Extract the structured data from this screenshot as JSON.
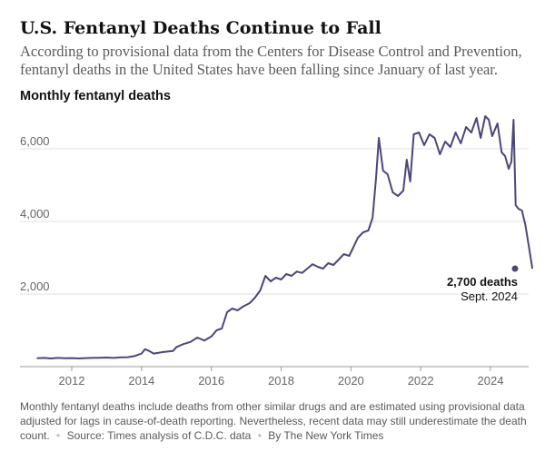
{
  "header": {
    "title": "U.S. Fentanyl Deaths Continue to Fall",
    "subtitle": "According to provisional data from the Centers for Disease Control and Prevention, fentanyl deaths in the United States have been falling since January of last year."
  },
  "chart_label": "Monthly fentanyl deaths",
  "chart_data": {
    "type": "line",
    "title": "Monthly fentanyl deaths",
    "xlabel": "",
    "ylabel": "",
    "xlim": [
      2011.0,
      2024.75
    ],
    "ylim": [
      0,
      7000
    ],
    "x_ticks": [
      2012,
      2014,
      2016,
      2018,
      2020,
      2022,
      2024
    ],
    "x_tick_labels": [
      "2012",
      "2014",
      "2016",
      "2018",
      "2020",
      "2022",
      "2024"
    ],
    "y_ticks": [
      2000,
      4000,
      6000
    ],
    "y_tick_labels": [
      "2,000",
      "4,000",
      "6,000"
    ],
    "grid": "horizontal",
    "line_color": "#4b4779",
    "series": [
      {
        "name": "",
        "points": [
          [
            2011.0,
            230
          ],
          [
            2011.2,
            240
          ],
          [
            2011.4,
            225
          ],
          [
            2011.6,
            240
          ],
          [
            2011.8,
            230
          ],
          [
            2012.0,
            235
          ],
          [
            2012.2,
            225
          ],
          [
            2012.4,
            235
          ],
          [
            2012.6,
            240
          ],
          [
            2012.8,
            245
          ],
          [
            2013.0,
            250
          ],
          [
            2013.2,
            240
          ],
          [
            2013.4,
            255
          ],
          [
            2013.6,
            260
          ],
          [
            2013.8,
            290
          ],
          [
            2014.0,
            360
          ],
          [
            2014.1,
            480
          ],
          [
            2014.2,
            440
          ],
          [
            2014.35,
            360
          ],
          [
            2014.6,
            400
          ],
          [
            2014.9,
            430
          ],
          [
            2015.0,
            540
          ],
          [
            2015.2,
            620
          ],
          [
            2015.4,
            680
          ],
          [
            2015.6,
            800
          ],
          [
            2015.8,
            720
          ],
          [
            2016.0,
            830
          ],
          [
            2016.15,
            1000
          ],
          [
            2016.3,
            1050
          ],
          [
            2016.45,
            1500
          ],
          [
            2016.6,
            1600
          ],
          [
            2016.75,
            1550
          ],
          [
            2016.9,
            1650
          ],
          [
            2017.1,
            1750
          ],
          [
            2017.25,
            1900
          ],
          [
            2017.4,
            2100
          ],
          [
            2017.55,
            2500
          ],
          [
            2017.7,
            2350
          ],
          [
            2017.85,
            2450
          ],
          [
            2018.0,
            2400
          ],
          [
            2018.15,
            2550
          ],
          [
            2018.3,
            2500
          ],
          [
            2018.45,
            2620
          ],
          [
            2018.6,
            2580
          ],
          [
            2018.75,
            2700
          ],
          [
            2018.9,
            2820
          ],
          [
            2019.05,
            2750
          ],
          [
            2019.2,
            2700
          ],
          [
            2019.35,
            2850
          ],
          [
            2019.5,
            2800
          ],
          [
            2019.65,
            2950
          ],
          [
            2019.8,
            3100
          ],
          [
            2019.95,
            3050
          ],
          [
            2020.05,
            3250
          ],
          [
            2020.2,
            3550
          ],
          [
            2020.35,
            3700
          ],
          [
            2020.5,
            3750
          ],
          [
            2020.62,
            4100
          ],
          [
            2020.72,
            5200
          ],
          [
            2020.8,
            6300
          ],
          [
            2020.92,
            5400
          ],
          [
            2021.05,
            5300
          ],
          [
            2021.2,
            4800
          ],
          [
            2021.35,
            4700
          ],
          [
            2021.5,
            4850
          ],
          [
            2021.6,
            5700
          ],
          [
            2021.7,
            5100
          ],
          [
            2021.8,
            6400
          ],
          [
            2021.95,
            6450
          ],
          [
            2022.1,
            6100
          ],
          [
            2022.25,
            6400
          ],
          [
            2022.4,
            6300
          ],
          [
            2022.55,
            5850
          ],
          [
            2022.7,
            6200
          ],
          [
            2022.85,
            6050
          ],
          [
            2023.0,
            6450
          ],
          [
            2023.15,
            6150
          ],
          [
            2023.3,
            6600
          ],
          [
            2023.45,
            6450
          ],
          [
            2023.6,
            6850
          ],
          [
            2023.72,
            6300
          ],
          [
            2023.85,
            6900
          ],
          [
            2023.95,
            6800
          ],
          [
            2024.05,
            6350
          ],
          [
            2024.2,
            6700
          ],
          [
            2024.32,
            5900
          ],
          [
            2024.42,
            5800
          ],
          [
            2024.52,
            5450
          ],
          [
            2024.6,
            5650
          ],
          [
            2024.66,
            6800
          ],
          [
            2024.72,
            4450
          ],
          [
            2024.8,
            4350
          ],
          [
            2024.9,
            4300
          ],
          [
            2025.0,
            3900
          ],
          [
            2025.1,
            3300
          ],
          [
            2025.2,
            2700
          ]
        ]
      }
    ],
    "annotation": {
      "value_label": "2,700 deaths",
      "date_label": "Sept. 2024",
      "x": 2025.2,
      "y": 2700
    }
  },
  "footer": {
    "note": "Monthly fentanyl deaths include deaths from other similar drugs and are estimated using provisional data adjusted for lags in cause-of-death reporting. Nevertheless, recent data may still underestimate the death count.",
    "source": "Source: Times analysis of C.D.C. data",
    "credit": "By The New York Times"
  }
}
